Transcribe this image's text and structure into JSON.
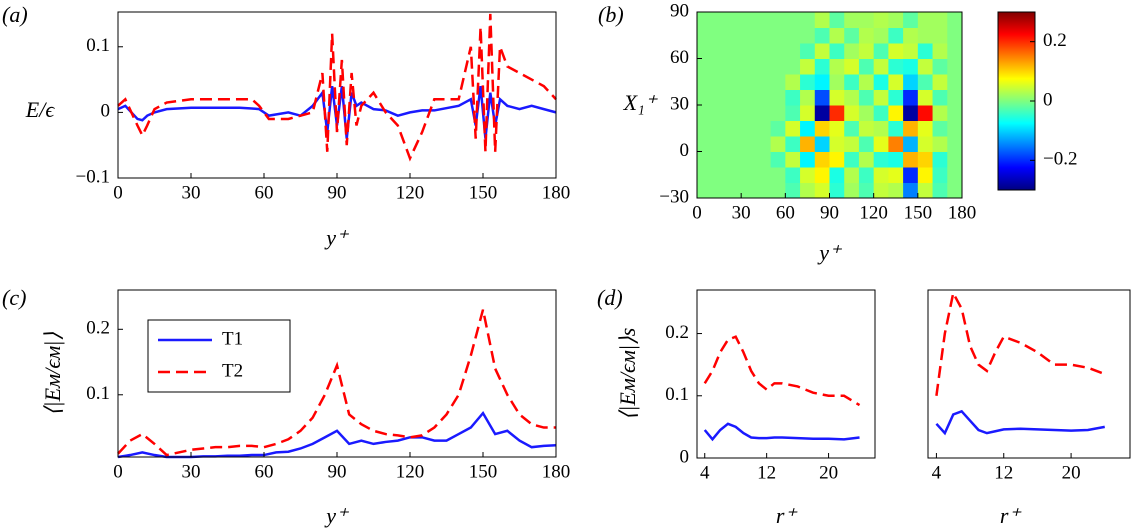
{
  "chart_data": [
    {
      "type": "line",
      "panel_label": "(a)",
      "ylabel": "E/ϵ",
      "xlabel": "y⁺",
      "x": [
        0,
        3,
        8,
        10,
        12,
        15,
        20,
        30,
        50,
        55,
        58,
        62,
        70,
        75,
        80,
        84,
        86,
        88,
        90,
        92,
        94,
        96,
        98,
        100,
        105,
        110,
        115,
        120,
        125,
        130,
        140,
        145,
        147,
        149,
        151,
        153,
        155,
        157,
        160,
        165,
        170,
        175,
        180
      ],
      "series": [
        {
          "color": "#1a1aff",
          "style": "solid",
          "values": [
            0.005,
            0.01,
            -0.01,
            -0.012,
            -0.005,
            0,
            0.005,
            0.007,
            0.007,
            0.006,
            0.005,
            -0.005,
            0,
            -0.005,
            0.01,
            0.03,
            -0.03,
            0.04,
            -0.02,
            0.04,
            -0.04,
            0.03,
            0.01,
            0.015,
            0.005,
            0.003,
            -0.005,
            0,
            0.003,
            0.003,
            0.01,
            0.02,
            -0.02,
            0.04,
            -0.04,
            0.03,
            -0.02,
            0.02,
            0.01,
            0.005,
            0.01,
            0.005,
            0
          ]
        },
        {
          "color": "#ff0000",
          "style": "dashed",
          "values": [
            0.01,
            0.02,
            -0.02,
            -0.035,
            -0.02,
            0.005,
            0.015,
            0.02,
            0.02,
            0.02,
            0.01,
            -0.01,
            -0.01,
            -0.005,
            0,
            0.06,
            -0.06,
            0.12,
            -0.03,
            0.08,
            -0.05,
            0.06,
            -0.02,
            0.01,
            0.03,
            0,
            -0.02,
            -0.07,
            -0.03,
            0.02,
            0.02,
            0.1,
            -0.04,
            0.13,
            -0.06,
            0.15,
            -0.06,
            0.1,
            0.07,
            0.06,
            0.05,
            0.04,
            0.02
          ]
        }
      ],
      "xlim": [
        0,
        180
      ],
      "xticks": [
        0,
        30,
        60,
        90,
        120,
        150,
        180
      ],
      "ylim": [
        -0.1,
        0.153
      ],
      "yticks": [
        {
          "value": -0.1,
          "label": "−0.1"
        },
        0,
        0.1
      ]
    },
    {
      "type": "heatmap",
      "panel_label": "(b)",
      "ylabel": "X₁⁺",
      "xlabel": "y⁺",
      "x": [
        5,
        15,
        25,
        35,
        45,
        55,
        65,
        75,
        85,
        95,
        105,
        115,
        125,
        135,
        145,
        155,
        165,
        175
      ],
      "y": [
        -25,
        -15,
        -5,
        5,
        15,
        25,
        35,
        45,
        55,
        65,
        75,
        85
      ],
      "z": [
        [
          0,
          0,
          0,
          0,
          0,
          0,
          -0.03,
          0.03,
          0.05,
          -0.05,
          0.02,
          -0.03,
          0.04,
          0.03,
          -0.15,
          0.04,
          -0.03,
          0
        ],
        [
          0,
          0,
          0,
          0,
          0,
          0,
          -0.04,
          0.05,
          0.08,
          -0.06,
          0.03,
          -0.04,
          0.05,
          0.06,
          -0.2,
          0.08,
          -0.04,
          0
        ],
        [
          0,
          0,
          0,
          0,
          0,
          -0.03,
          0.04,
          -0.08,
          0.1,
          0.08,
          -0.04,
          0.03,
          -0.05,
          -0.06,
          0.12,
          0.1,
          -0.05,
          0
        ],
        [
          0,
          0,
          0,
          0,
          0,
          0.03,
          -0.04,
          0.12,
          -0.1,
          0.05,
          0.04,
          -0.03,
          0.06,
          0.15,
          -0.12,
          0.05,
          0.03,
          0
        ],
        [
          0,
          0,
          0,
          0,
          0,
          -0.02,
          0.05,
          -0.08,
          0.1,
          0.06,
          -0.03,
          0.04,
          0.03,
          -0.05,
          0.12,
          0.06,
          -0.02,
          0
        ],
        [
          0,
          0,
          0,
          0,
          0,
          0,
          -0.03,
          0.05,
          -0.28,
          0.2,
          0.05,
          0.02,
          -0.04,
          0.08,
          -0.28,
          0.22,
          0.03,
          0
        ],
        [
          0,
          0,
          0,
          0,
          0,
          0,
          -0.04,
          0.03,
          -0.18,
          0.05,
          0.03,
          -0.03,
          0.04,
          -0.05,
          -0.2,
          0.05,
          -0.03,
          0
        ],
        [
          0,
          0,
          0,
          0,
          0,
          0,
          0.03,
          -0.05,
          -0.08,
          0.02,
          -0.04,
          0.03,
          -0.06,
          0.05,
          -0.1,
          -0.03,
          0.04,
          0
        ],
        [
          0,
          0,
          0,
          0,
          0,
          0,
          0,
          0.04,
          -0.05,
          0.03,
          0.05,
          -0.03,
          0.04,
          -0.05,
          -0.06,
          0.04,
          -0.02,
          0
        ],
        [
          0,
          0,
          0,
          0,
          0,
          0,
          0,
          -0.03,
          0.04,
          -0.04,
          0.02,
          0.04,
          -0.03,
          0.05,
          0.04,
          -0.05,
          0.03,
          0
        ],
        [
          0,
          0,
          0,
          0,
          0,
          0,
          0,
          0,
          -0.03,
          0.03,
          -0.02,
          0.03,
          0.02,
          -0.04,
          0.03,
          0.02,
          0.02,
          0
        ],
        [
          0,
          0,
          0,
          0,
          0,
          0,
          0,
          0,
          0.03,
          -0.02,
          0.02,
          0.02,
          0.03,
          0.02,
          -0.02,
          0.02,
          0.02,
          0
        ]
      ],
      "xlim": [
        0,
        180
      ],
      "xticks": [
        0,
        30,
        60,
        90,
        120,
        150,
        180
      ],
      "ylim": [
        -30,
        90
      ],
      "yticks": [
        {
          "value": -30,
          "label": "−30"
        },
        0,
        30,
        60,
        90
      ],
      "clim": [
        -0.3,
        0.3
      ],
      "cticks": [
        {
          "value": -0.2,
          "label": "−0.2"
        },
        0,
        0.2
      ],
      "colormap": "jet"
    },
    {
      "type": "line",
      "panel_label": "(c)",
      "ylabel": "⟨|Eᴍ/ϵᴍ|⟩",
      "xlabel": "y⁺",
      "x": [
        0,
        5,
        10,
        15,
        20,
        25,
        30,
        35,
        40,
        45,
        50,
        55,
        60,
        65,
        70,
        75,
        80,
        85,
        90,
        95,
        100,
        105,
        110,
        115,
        120,
        125,
        130,
        135,
        140,
        145,
        150,
        155,
        160,
        165,
        170,
        175,
        180
      ],
      "series": [
        {
          "name": "T1",
          "color": "#1a1aff",
          "style": "solid",
          "values": [
            0.005,
            0.008,
            0.012,
            0.008,
            0.005,
            0.005,
            0.005,
            0.006,
            0.006,
            0.007,
            0.007,
            0.008,
            0.008,
            0.012,
            0.013,
            0.018,
            0.025,
            0.035,
            0.045,
            0.025,
            0.03,
            0.025,
            0.028,
            0.03,
            0.035,
            0.035,
            0.03,
            0.03,
            0.04,
            0.05,
            0.072,
            0.04,
            0.045,
            0.03,
            0.02,
            0.022,
            0.023
          ]
        },
        {
          "name": "T2",
          "color": "#ff0000",
          "style": "dashed",
          "values": [
            0.01,
            0.03,
            0.04,
            0.025,
            0.008,
            0.012,
            0.016,
            0.018,
            0.02,
            0.02,
            0.022,
            0.022,
            0.02,
            0.025,
            0.032,
            0.045,
            0.065,
            0.1,
            0.145,
            0.07,
            0.055,
            0.045,
            0.04,
            0.038,
            0.035,
            0.038,
            0.05,
            0.07,
            0.1,
            0.16,
            0.23,
            0.14,
            0.1,
            0.07,
            0.055,
            0.05,
            0.05
          ]
        }
      ],
      "xlim": [
        0,
        180
      ],
      "xticks": [
        0,
        30,
        60,
        90,
        120,
        150,
        180
      ],
      "ylim": [
        0.005,
        0.26
      ],
      "yticks": [
        0.1,
        0.2
      ],
      "legend": "upper-left"
    },
    {
      "type": "line",
      "panel_label": "(d)",
      "ylabel": "⟨|Eᴍ/ϵᴍ|⟩s",
      "xlabel": "r⁺",
      "x": [
        4,
        5,
        6,
        7,
        8,
        9,
        10,
        11,
        12,
        13,
        14,
        16,
        18,
        20,
        22,
        24
      ],
      "series": [
        {
          "color": "#1a1aff",
          "style": "solid",
          "values": [
            0.045,
            0.03,
            0.045,
            0.055,
            0.05,
            0.04,
            0.033,
            0.032,
            0.032,
            0.033,
            0.033,
            0.032,
            0.031,
            0.031,
            0.03,
            0.033
          ]
        },
        {
          "color": "#ff0000",
          "style": "dashed",
          "values": [
            0.12,
            0.14,
            0.17,
            0.19,
            0.195,
            0.17,
            0.14,
            0.12,
            0.11,
            0.12,
            0.12,
            0.115,
            0.105,
            0.1,
            0.1,
            0.085
          ]
        }
      ],
      "xlim": [
        3,
        26
      ],
      "xticks": [
        4,
        12,
        20
      ],
      "ylim": [
        0,
        0.27
      ],
      "yticks": [
        0,
        0.1,
        0.2
      ]
    },
    {
      "type": "line",
      "xlabel": "r⁺",
      "x": [
        4,
        5,
        6,
        7,
        8,
        9,
        10,
        11,
        12,
        14,
        16,
        18,
        20,
        22,
        24
      ],
      "series": [
        {
          "color": "#1a1aff",
          "style": "solid",
          "values": [
            0.055,
            0.04,
            0.07,
            0.075,
            0.06,
            0.045,
            0.04,
            0.043,
            0.046,
            0.047,
            0.046,
            0.045,
            0.044,
            0.045,
            0.05
          ]
        },
        {
          "color": "#ff0000",
          "style": "dashed",
          "values": [
            0.1,
            0.2,
            0.265,
            0.24,
            0.18,
            0.15,
            0.14,
            0.17,
            0.195,
            0.185,
            0.17,
            0.15,
            0.15,
            0.145,
            0.135
          ]
        }
      ],
      "xlim": [
        3,
        27
      ],
      "xticks": [
        4,
        12,
        20
      ],
      "ylim": [
        0,
        0.27
      ]
    }
  ]
}
